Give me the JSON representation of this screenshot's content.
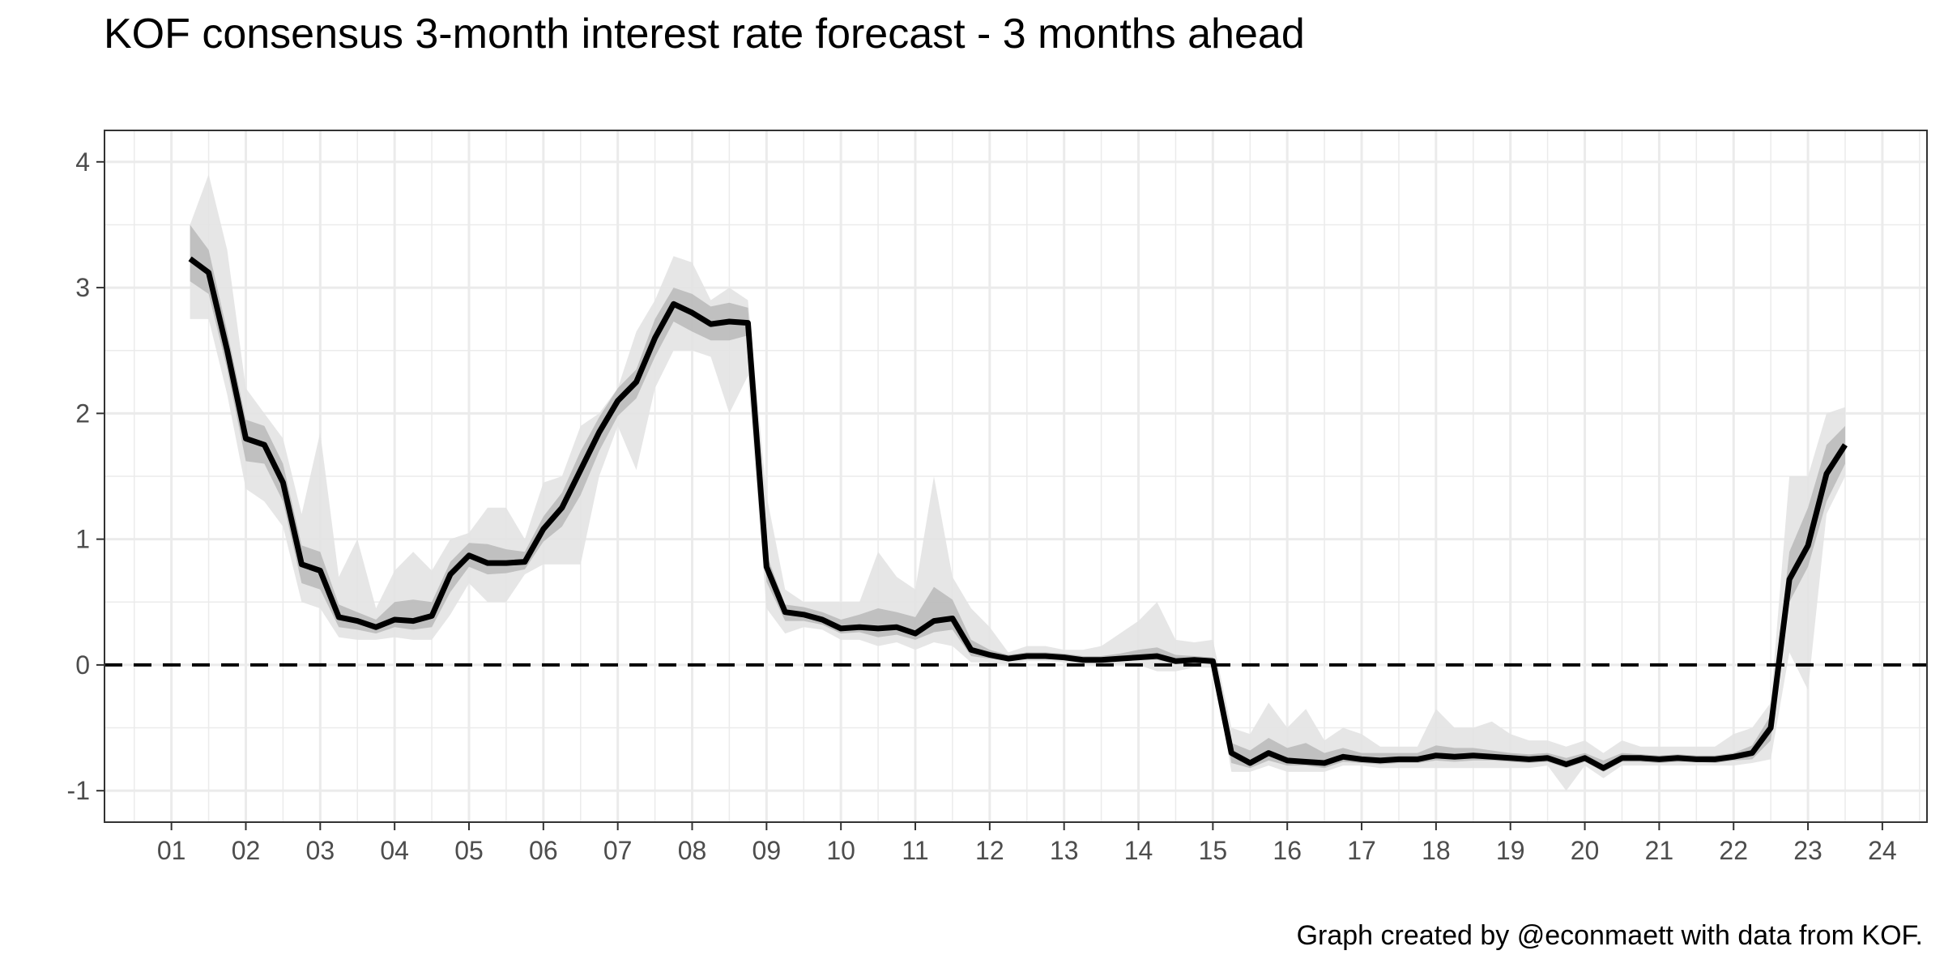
{
  "chart_data": {
    "type": "line",
    "title": "KOF consensus 3-month interest rate forecast - 3 months ahead",
    "caption": "Graph created by @econmaett with data from KOF.",
    "xlabel": "",
    "ylabel": "",
    "xlim": [
      2000.1,
      2024.6
    ],
    "ylim": [
      -1.25,
      4.25
    ],
    "x_ticks": [
      2001,
      2002,
      2003,
      2004,
      2005,
      2006,
      2007,
      2008,
      2009,
      2010,
      2011,
      2012,
      2013,
      2014,
      2015,
      2016,
      2017,
      2018,
      2019,
      2020,
      2021,
      2022,
      2023,
      2024
    ],
    "x_tick_labels": [
      "01",
      "02",
      "03",
      "04",
      "05",
      "06",
      "07",
      "08",
      "09",
      "10",
      "11",
      "12",
      "13",
      "14",
      "15",
      "16",
      "17",
      "18",
      "19",
      "20",
      "21",
      "22",
      "23",
      "24"
    ],
    "y_ticks": [
      -1,
      0,
      1,
      2,
      3,
      4
    ],
    "y_tick_labels": [
      "-1",
      "0",
      "1",
      "2",
      "3",
      "4"
    ],
    "grid": true,
    "reference_line": {
      "y": 0,
      "style": "dashed"
    },
    "colors": {
      "median": "#000000",
      "inner_band": "#b3b3b3",
      "outer_band": "#e3e3e3",
      "grid": "#ebebeb",
      "panel_border": "#333333"
    },
    "series": [
      {
        "x": [
          2001.25,
          2001.5,
          2001.75,
          2002.0,
          2002.25,
          2002.5,
          2002.75,
          2003.0,
          2003.25,
          2003.5,
          2003.75,
          2004.0,
          2004.25,
          2004.5,
          2004.75,
          2005.0,
          2005.25,
          2005.5,
          2005.75,
          2006.0,
          2006.25,
          2006.5,
          2006.75,
          2007.0,
          2007.25,
          2007.5,
          2007.75,
          2008.0,
          2008.25,
          2008.5,
          2008.75,
          2009.0,
          2009.25,
          2009.5,
          2009.75,
          2010.0,
          2010.25,
          2010.5,
          2010.75,
          2011.0,
          2011.25,
          2011.5,
          2011.75,
          2012.0,
          2012.25,
          2012.5,
          2012.75,
          2013.0,
          2013.25,
          2013.5,
          2013.75,
          2014.0,
          2014.25,
          2014.5,
          2014.75,
          2015.0,
          2015.25,
          2015.5,
          2015.75,
          2016.0,
          2016.25,
          2016.5,
          2016.75,
          2017.0,
          2017.25,
          2017.5,
          2017.75,
          2018.0,
          2018.25,
          2018.5,
          2018.75,
          2019.0,
          2019.25,
          2019.5,
          2019.75,
          2020.0,
          2020.25,
          2020.5,
          2020.75,
          2021.0,
          2021.25,
          2021.5,
          2021.75,
          2022.0,
          2022.25,
          2022.5,
          2022.75,
          2023.0,
          2023.25,
          2023.5
        ],
        "median": [
          3.23,
          3.12,
          2.5,
          1.8,
          1.75,
          1.45,
          0.8,
          0.75,
          0.38,
          0.35,
          0.3,
          0.36,
          0.35,
          0.39,
          0.72,
          0.87,
          0.81,
          0.81,
          0.82,
          1.08,
          1.25,
          1.55,
          1.85,
          2.1,
          2.25,
          2.6,
          2.87,
          2.8,
          2.71,
          2.73,
          2.72,
          0.78,
          0.42,
          0.4,
          0.36,
          0.29,
          0.3,
          0.29,
          0.3,
          0.25,
          0.35,
          0.37,
          0.12,
          0.08,
          0.05,
          0.07,
          0.07,
          0.06,
          0.04,
          0.04,
          0.05,
          0.06,
          0.07,
          0.03,
          0.04,
          0.03,
          -0.7,
          -0.78,
          -0.7,
          -0.76,
          -0.77,
          -0.78,
          -0.73,
          -0.75,
          -0.76,
          -0.75,
          -0.75,
          -0.72,
          -0.73,
          -0.72,
          -0.73,
          -0.74,
          -0.75,
          -0.74,
          -0.79,
          -0.74,
          -0.82,
          -0.74,
          -0.74,
          -0.75,
          -0.74,
          -0.75,
          -0.75,
          -0.73,
          -0.7,
          -0.5,
          0.68,
          0.95,
          1.52,
          1.75
        ],
        "inner_low": [
          3.05,
          2.95,
          2.35,
          1.62,
          1.6,
          1.3,
          0.65,
          0.6,
          0.3,
          0.28,
          0.25,
          0.3,
          0.28,
          0.3,
          0.58,
          0.78,
          0.72,
          0.73,
          0.76,
          0.98,
          1.1,
          1.35,
          1.7,
          1.98,
          2.12,
          2.45,
          2.73,
          2.65,
          2.58,
          2.58,
          2.62,
          0.66,
          0.35,
          0.35,
          0.32,
          0.25,
          0.26,
          0.22,
          0.24,
          0.2,
          0.26,
          0.28,
          0.07,
          0.05,
          0.03,
          0.05,
          0.05,
          0.04,
          0.02,
          0.02,
          0.03,
          0.04,
          0.04,
          0.01,
          0.02,
          0.01,
          -0.78,
          -0.82,
          -0.76,
          -0.8,
          -0.8,
          -0.82,
          -0.77,
          -0.78,
          -0.79,
          -0.78,
          -0.78,
          -0.76,
          -0.77,
          -0.76,
          -0.76,
          -0.77,
          -0.78,
          -0.77,
          -0.82,
          -0.77,
          -0.85,
          -0.77,
          -0.77,
          -0.78,
          -0.77,
          -0.77,
          -0.78,
          -0.76,
          -0.75,
          -0.6,
          0.5,
          0.78,
          1.3,
          1.6
        ],
        "inner_high": [
          3.5,
          3.3,
          2.65,
          1.95,
          1.9,
          1.6,
          0.95,
          0.9,
          0.48,
          0.42,
          0.36,
          0.5,
          0.52,
          0.5,
          0.82,
          0.97,
          0.96,
          0.92,
          0.9,
          1.18,
          1.37,
          1.7,
          1.97,
          2.2,
          2.35,
          2.75,
          3.0,
          2.95,
          2.85,
          2.88,
          2.84,
          0.88,
          0.48,
          0.46,
          0.42,
          0.36,
          0.4,
          0.45,
          0.42,
          0.38,
          0.62,
          0.52,
          0.2,
          0.12,
          0.08,
          0.1,
          0.1,
          0.09,
          0.07,
          0.07,
          0.09,
          0.12,
          0.14,
          0.08,
          0.07,
          0.06,
          -0.62,
          -0.68,
          -0.58,
          -0.66,
          -0.62,
          -0.7,
          -0.66,
          -0.7,
          -0.7,
          -0.7,
          -0.7,
          -0.64,
          -0.66,
          -0.66,
          -0.68,
          -0.7,
          -0.71,
          -0.7,
          -0.74,
          -0.7,
          -0.76,
          -0.7,
          -0.71,
          -0.72,
          -0.71,
          -0.72,
          -0.72,
          -0.7,
          -0.64,
          -0.4,
          0.9,
          1.25,
          1.75,
          1.9
        ],
        "outer_low": [
          2.75,
          2.75,
          2.15,
          1.4,
          1.3,
          1.1,
          0.5,
          0.45,
          0.22,
          0.2,
          0.2,
          0.22,
          0.2,
          0.2,
          0.4,
          0.65,
          0.5,
          0.5,
          0.72,
          0.8,
          0.8,
          0.8,
          1.5,
          1.9,
          1.55,
          2.2,
          2.5,
          2.5,
          2.45,
          2.0,
          2.3,
          0.45,
          0.25,
          0.3,
          0.28,
          0.2,
          0.2,
          0.15,
          0.18,
          0.12,
          0.18,
          0.15,
          0.02,
          0.02,
          0.0,
          0.03,
          0.03,
          0.02,
          0.0,
          0.0,
          0.0,
          0.0,
          -0.05,
          -0.05,
          -0.02,
          -0.02,
          -0.85,
          -0.85,
          -0.8,
          -0.85,
          -0.85,
          -0.85,
          -0.8,
          -0.8,
          -0.82,
          -0.82,
          -0.82,
          -0.82,
          -0.82,
          -0.82,
          -0.82,
          -0.82,
          -0.82,
          -0.8,
          -1.0,
          -0.8,
          -0.9,
          -0.8,
          -0.8,
          -0.8,
          -0.8,
          -0.8,
          -0.8,
          -0.8,
          -0.78,
          -0.75,
          0.1,
          -0.2,
          1.2,
          1.5
        ],
        "outer_high": [
          3.5,
          3.9,
          3.3,
          2.2,
          2.0,
          1.8,
          1.2,
          1.85,
          0.7,
          1.0,
          0.45,
          0.75,
          0.9,
          0.75,
          1.0,
          1.05,
          1.25,
          1.25,
          1.0,
          1.45,
          1.5,
          1.9,
          2.0,
          2.2,
          2.65,
          2.9,
          3.25,
          3.2,
          2.9,
          3.0,
          2.9,
          1.35,
          0.6,
          0.5,
          0.5,
          0.5,
          0.5,
          0.9,
          0.7,
          0.6,
          1.5,
          0.7,
          0.45,
          0.3,
          0.1,
          0.15,
          0.15,
          0.12,
          0.12,
          0.15,
          0.25,
          0.35,
          0.5,
          0.2,
          0.18,
          0.2,
          -0.5,
          -0.55,
          -0.3,
          -0.5,
          -0.35,
          -0.6,
          -0.5,
          -0.55,
          -0.65,
          -0.65,
          -0.65,
          -0.35,
          -0.5,
          -0.5,
          -0.45,
          -0.55,
          -0.6,
          -0.6,
          -0.65,
          -0.6,
          -0.7,
          -0.6,
          -0.65,
          -0.65,
          -0.65,
          -0.65,
          -0.65,
          -0.55,
          -0.5,
          -0.3,
          1.5,
          1.5,
          2.0,
          2.05
        ]
      }
    ]
  }
}
